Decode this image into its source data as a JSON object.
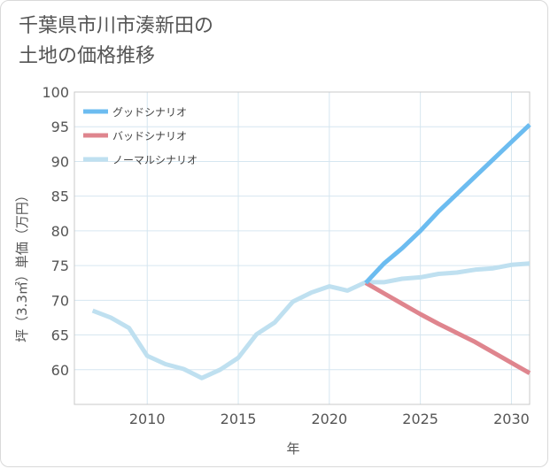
{
  "title": {
    "line1": "千葉県市川市湊新田の",
    "line2": "土地の価格推移"
  },
  "chart_data": {
    "type": "line",
    "xlabel": "年",
    "ylabel": "坪（3.3㎡）単価（万円）",
    "xlim": [
      2006,
      2031
    ],
    "ylim": [
      55,
      100
    ],
    "xticks": [
      2010,
      2015,
      2020,
      2025,
      2030
    ],
    "yticks": [
      60,
      65,
      70,
      75,
      80,
      85,
      90,
      95,
      100
    ],
    "grid": true,
    "legend_position": "top-left",
    "series": [
      {
        "name": "グッドシナリオ",
        "color": "#6cbcf0",
        "x": [
          2022,
          2023,
          2024,
          2025,
          2026,
          2027,
          2028,
          2029,
          2030,
          2031
        ],
        "y": [
          72.5,
          75.3,
          77.5,
          80.0,
          82.8,
          85.3,
          87.8,
          90.3,
          92.8,
          95.3
        ]
      },
      {
        "name": "バッドシナリオ",
        "color": "#df858e",
        "x": [
          2022,
          2023,
          2024,
          2025,
          2026,
          2027,
          2028,
          2029,
          2030,
          2031
        ],
        "y": [
          72.5,
          71.0,
          69.5,
          68.0,
          66.6,
          65.3,
          64.0,
          62.5,
          61.0,
          59.5
        ]
      },
      {
        "name": "ノーマルシナリオ",
        "color": "#bfe0f0",
        "x": [
          2007,
          2008,
          2009,
          2010,
          2011,
          2012,
          2013,
          2014,
          2015,
          2016,
          2017,
          2018,
          2019,
          2020,
          2021,
          2022,
          2023,
          2024,
          2025,
          2026,
          2027,
          2028,
          2029,
          2030,
          2031
        ],
        "y": [
          68.5,
          67.5,
          66.0,
          62.0,
          60.8,
          60.1,
          58.8,
          60.0,
          61.7,
          65.1,
          66.8,
          69.8,
          71.1,
          72.0,
          71.4,
          72.6,
          72.6,
          73.1,
          73.3,
          73.8,
          74.0,
          74.4,
          74.6,
          75.1,
          75.3
        ]
      }
    ]
  }
}
